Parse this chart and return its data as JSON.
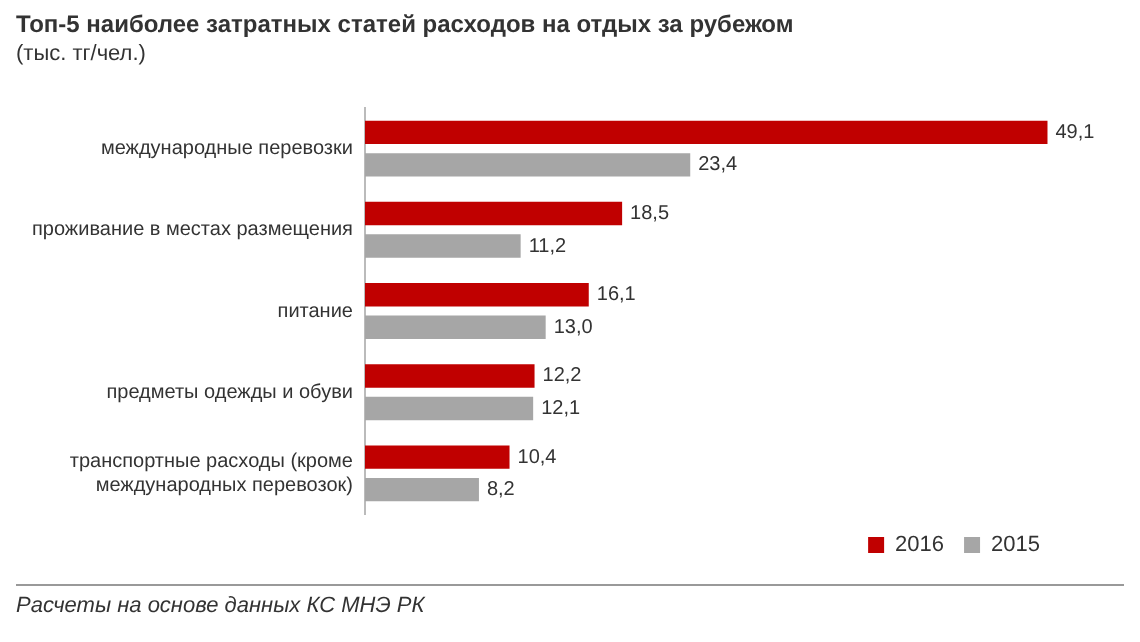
{
  "chart_data": {
    "type": "bar",
    "orientation": "horizontal",
    "title": "Топ-5 наиболее затратных статей расходов на отдых за рубежом",
    "subtitle": "(тыс. тг/чел.)",
    "categories": [
      "международные перевозки",
      "проживание в местах размещения",
      "питание",
      "предметы одежды и обуви",
      "транспортные расходы (кроме международных перевозок)"
    ],
    "series": [
      {
        "name": "2016",
        "color": "#c00000",
        "values": [
          49.1,
          18.5,
          16.1,
          12.2,
          10.4
        ],
        "value_labels": [
          "49,1",
          "18,5",
          "16,1",
          "12,2",
          "10,4"
        ]
      },
      {
        "name": "2015",
        "color": "#a6a6a6",
        "values": [
          23.4,
          11.2,
          13.0,
          12.1,
          8.2
        ],
        "value_labels": [
          "23,4",
          "11,2",
          "13,0",
          "12,1",
          "8,2"
        ]
      }
    ],
    "legend": "bottom right",
    "annotations": [
      "Расчеты на основе данных КС МНЭ РК"
    ]
  }
}
